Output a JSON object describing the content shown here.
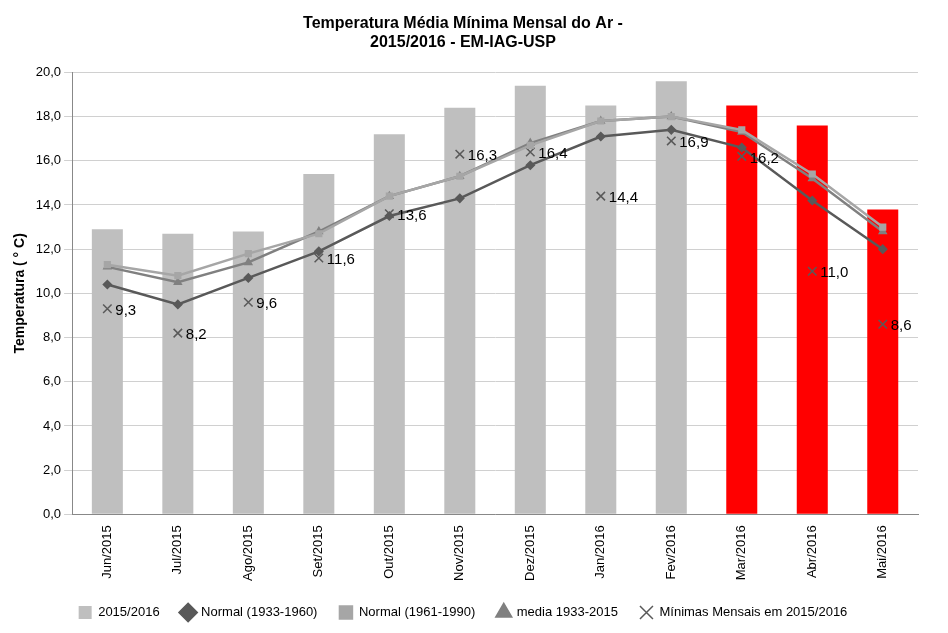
{
  "chart_data": {
    "type": "bar",
    "title": [
      "Temperatura Média Mínima Mensal do Ar -",
      "2015/2016 - EM-IAG-USP"
    ],
    "y_label": "Temperatura ( ° C)",
    "categories": [
      "Jun/2015",
      "Jul/2015",
      "Ago/2015",
      "Set/2015",
      "Out/2015",
      "Nov/2015",
      "Dez/2015",
      "Jan/2016",
      "Fev/2016",
      "Mar/2016",
      "Abr/2016",
      "Mai/2016"
    ],
    "ylim": [
      0,
      20
    ],
    "yticks": [
      {
        "value": 0,
        "label": "0,0"
      },
      {
        "value": 2,
        "label": "2,0"
      },
      {
        "value": 4,
        "label": "4,0"
      },
      {
        "value": 6,
        "label": "6,0"
      },
      {
        "value": 8,
        "label": "8,0"
      },
      {
        "value": 10,
        "label": "10,0"
      },
      {
        "value": 12,
        "label": "12,0"
      },
      {
        "value": 14,
        "label": "14,0"
      },
      {
        "value": 16,
        "label": "16,0"
      },
      {
        "value": 18,
        "label": "18,0"
      },
      {
        "value": 20,
        "label": "20,0"
      }
    ],
    "grid": true,
    "legend": "bottom",
    "series": [
      {
        "name": "2015/2016",
        "type": "bar",
        "colors": [
          "#bfbfbf",
          "#bfbfbf",
          "#bfbfbf",
          "#bfbfbf",
          "#bfbfbf",
          "#bfbfbf",
          "#bfbfbf",
          "#bfbfbf",
          "#bfbfbf",
          "#ff0000",
          "#ff0000",
          "#ff0000"
        ],
        "values": [
          12.9,
          12.7,
          12.8,
          15.4,
          17.2,
          18.4,
          19.4,
          18.5,
          19.6,
          18.5,
          17.6,
          13.8
        ]
      },
      {
        "name": "Normal (1933-1960)",
        "type": "line",
        "color": "#595959",
        "marker": "diamond",
        "line_style": "solid",
        "values": [
          10.4,
          9.5,
          10.7,
          11.9,
          13.5,
          14.3,
          15.8,
          17.1,
          17.4,
          16.6,
          14.2,
          12.0
        ]
      },
      {
        "name": "Normal (1961-1990)",
        "type": "line",
        "color": "#a6a6a6",
        "marker": "square",
        "line_style": "solid",
        "values": [
          11.3,
          10.8,
          11.8,
          12.7,
          14.4,
          15.3,
          16.7,
          17.8,
          18.0,
          17.4,
          15.4,
          13.0
        ]
      },
      {
        "name": "media 1933-2015",
        "type": "line",
        "color": "#808080",
        "marker": "triangle",
        "line_style": "solid",
        "values": [
          11.2,
          10.5,
          11.4,
          12.8,
          14.4,
          15.3,
          16.8,
          17.8,
          18.0,
          17.3,
          15.2,
          12.8
        ]
      },
      {
        "name": "Mínimas Mensais em 2015/2016",
        "type": "scatter",
        "color": "#595959",
        "marker": "x",
        "data_labels": true,
        "values": [
          9.3,
          8.2,
          9.6,
          11.6,
          13.6,
          16.3,
          16.4,
          14.4,
          16.9,
          16.2,
          11.0,
          8.6
        ],
        "value_labels": [
          "9,3",
          "8,2",
          "9,6",
          "11,6",
          "13,6",
          "16,3",
          "16,4",
          "14,4",
          "16,9",
          "16,2",
          "11,0",
          "8,6"
        ]
      }
    ]
  }
}
